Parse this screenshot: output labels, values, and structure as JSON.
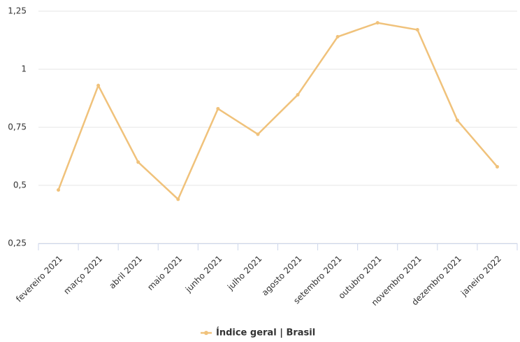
{
  "chart_data": {
    "type": "line",
    "categories": [
      "fevereiro 2021",
      "março 2021",
      "abril 2021",
      "maio 2021",
      "junho 2021",
      "julho 2021",
      "agosto 2021",
      "setembro 2021",
      "outubro 2021",
      "novembro 2021",
      "dezembro 2021",
      "janeiro 2022"
    ],
    "series": [
      {
        "name": "Índice geral | Brasil",
        "color": "#f0c27b",
        "values": [
          0.48,
          0.93,
          0.6,
          0.44,
          0.83,
          0.72,
          0.89,
          1.14,
          1.2,
          1.17,
          0.78,
          0.58
        ]
      }
    ],
    "ylim": [
      0.25,
      1.25
    ],
    "yticks": [
      {
        "value": 0.25,
        "label": "0,25"
      },
      {
        "value": 0.5,
        "label": "0,5"
      },
      {
        "value": 0.75,
        "label": "0,75"
      },
      1,
      {
        "value": 1.25,
        "label": "1,25"
      }
    ],
    "grid": true,
    "legend": "bottom"
  }
}
